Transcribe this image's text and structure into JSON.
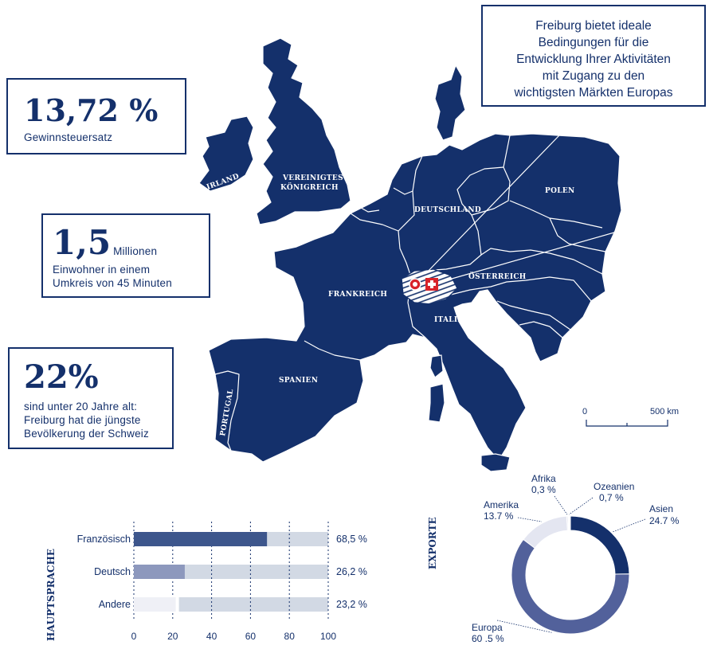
{
  "colors": {
    "navy": "#14306b",
    "mid": "#52619b",
    "light": "#d2d9e4",
    "pale": "#e4e6f1",
    "palest": "#f1f2f6",
    "line": "#ffffff"
  },
  "intro": {
    "lines": [
      "Freiburg bietet ideale",
      "Bedingungen für die",
      "Entwicklung Ihrer Aktivitäten",
      "mit Zugang zu den",
      "wichtigsten Märkten Europas"
    ]
  },
  "stats": {
    "tax": {
      "value": "13,72 %",
      "label": "Gewinnsteuersatz"
    },
    "population": {
      "value": "1,5",
      "unit": "Millionen",
      "lines": [
        "Einwohner in einem",
        "Umkreis von 45 Minuten"
      ]
    },
    "youth": {
      "value": "22%",
      "lines": [
        "sind unter 20 Jahre alt:",
        "Freiburg hat die jüngste",
        "Bevölkerung der Schweiz"
      ]
    }
  },
  "map": {
    "countries": [
      "IRLAND",
      "VEREINIGTES",
      "KÖNIGREICH",
      "DEUTSCHLAND",
      "POLEN",
      "FRANKREICH",
      "ÖSTERREICH",
      "ITALIEN",
      "SPANIEN",
      "PORTUGAL"
    ],
    "scale": {
      "start": "0",
      "end": "500 km"
    },
    "icons": [
      "swiss-flag-icon",
      "freiburg-marker-icon"
    ]
  },
  "chart_data": [
    {
      "type": "bar",
      "title": "HAUPTSPRACHE",
      "categories": [
        "Französisch",
        "Deutsch",
        "Andere"
      ],
      "series": [
        {
          "values": [
            68.5,
            26.2,
            23.2
          ]
        }
      ],
      "value_labels": [
        "68,5 %",
        "26,2 %",
        "23,2 %"
      ],
      "xlim": [
        0,
        100
      ],
      "ticks": [
        "0",
        "20",
        "40",
        "60",
        "80",
        "100"
      ],
      "grid": true,
      "colors": [
        "#3d568c",
        "#8d98bd",
        "#eff0f6"
      ]
    },
    {
      "type": "pie",
      "title": "EXPORTE",
      "slices": [
        {
          "name": "Asien",
          "value": 24.7,
          "label": "24.7 %",
          "color": "#14306b"
        },
        {
          "name": "Europa",
          "value": 60.5,
          "label": "60 .5 %",
          "color": "#52619b"
        },
        {
          "name": "Amerika",
          "value": 13.7,
          "label": "13.7 %",
          "color": "#e4e6f1"
        },
        {
          "name": "Afrika",
          "value": 0.3,
          "label": "0,3 %",
          "color": "#c3c7dd"
        },
        {
          "name": "Ozeanien",
          "value": 0.7,
          "label": "0,7 %",
          "color": "#ffffff"
        }
      ]
    }
  ]
}
